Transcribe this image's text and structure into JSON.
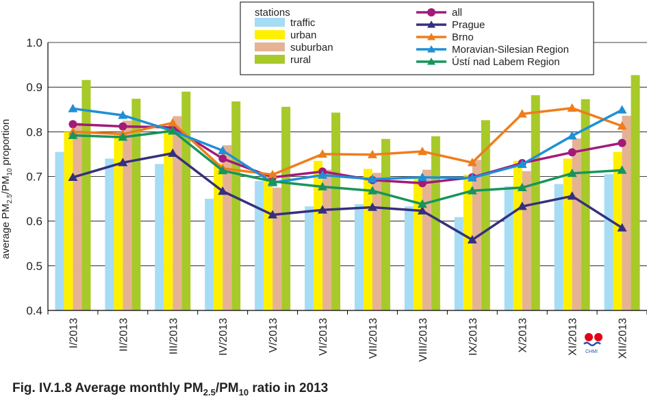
{
  "caption": {
    "prefix": "Fig. IV.1.8  Average monthly PM",
    "sub1": "2.5",
    "mid": "/PM",
    "sub2": "10",
    "suffix": " ratio in 2013"
  },
  "logo": {
    "text": "CHMI",
    "icon": "chmi-logo-icon"
  },
  "chart_data": {
    "type": "bar+line",
    "ylabel": {
      "prefix": "average PM",
      "sub1": "2.5",
      "mid": "/PM",
      "sub2": "10",
      "suffix": " proportion"
    },
    "ylim": [
      0.4,
      1.0
    ],
    "yticks": [
      "0.4",
      "0.5",
      "0.6",
      "0.7",
      "0.8",
      "0.9",
      "1.0"
    ],
    "grid": true,
    "legend_position": "top-center",
    "categories": [
      "I/2013",
      "II/2013",
      "III/2013",
      "IV/2013",
      "V/2013",
      "VI/2013",
      "VII/2013",
      "VIII/2013",
      "IX/2013",
      "X/2013",
      "XI/2013",
      "XII/2013"
    ],
    "bar_legend_title": "stations",
    "bar_series": [
      {
        "name": "traffic",
        "color": "#a6dcf4",
        "values": [
          0.755,
          0.74,
          0.728,
          0.65,
          0.69,
          0.633,
          0.638,
          0.633,
          0.609,
          0.678,
          0.683,
          0.705
        ]
      },
      {
        "name": "urban",
        "color": "#fff000",
        "values": [
          0.8,
          0.795,
          0.805,
          0.73,
          0.7,
          0.735,
          0.717,
          0.7,
          0.704,
          0.735,
          0.74,
          0.755
        ]
      },
      {
        "name": "suburban",
        "color": "#e5b394",
        "values": [
          0.82,
          0.825,
          0.835,
          0.77,
          0.675,
          0.715,
          0.708,
          0.715,
          0.737,
          0.712,
          0.785,
          0.836
        ]
      },
      {
        "name": "rural",
        "color": "#a8c92a",
        "values": [
          0.916,
          0.874,
          0.89,
          0.868,
          0.856,
          0.843,
          0.784,
          0.79,
          0.826,
          0.882,
          0.873,
          0.927
        ]
      }
    ],
    "line_series": [
      {
        "name": "all",
        "color": "#a21a7a",
        "marker": "circle",
        "values": [
          0.817,
          0.812,
          0.81,
          0.74,
          0.698,
          0.711,
          0.692,
          0.685,
          0.698,
          0.73,
          0.754,
          0.775
        ]
      },
      {
        "name": "Prague",
        "color": "#34307e",
        "marker": "triangle",
        "values": [
          0.698,
          0.731,
          0.752,
          0.667,
          0.614,
          0.625,
          0.631,
          0.623,
          0.558,
          0.633,
          0.656,
          0.585
        ]
      },
      {
        "name": "Brno",
        "color": "#ef7d1a",
        "marker": "triangle",
        "values": [
          0.8,
          0.795,
          0.82,
          0.718,
          0.704,
          0.75,
          0.749,
          0.756,
          0.731,
          0.84,
          0.853,
          0.813
        ]
      },
      {
        "name": "Moravian-Silesian Region",
        "color": "#1e90d6",
        "marker": "triangle",
        "values": [
          0.852,
          0.837,
          0.802,
          0.758,
          0.686,
          0.703,
          0.694,
          0.698,
          0.697,
          0.727,
          0.791,
          0.849
        ]
      },
      {
        "name": "Ústí nad Labem Region",
        "color": "#17955a",
        "marker": "triangle",
        "values": [
          0.792,
          0.788,
          0.802,
          0.713,
          0.689,
          0.677,
          0.668,
          0.638,
          0.668,
          0.675,
          0.707,
          0.714
        ]
      }
    ]
  }
}
